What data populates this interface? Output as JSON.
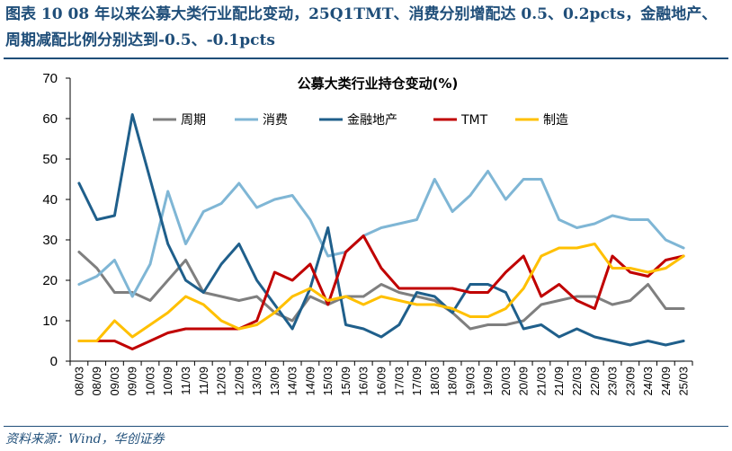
{
  "header": {
    "title": "图表 10 08 年以来公募大类行业配比变动，25Q1TMT、消费分别增配达 0.5、0.2pcts，金融地产、周期减配比例分别达到-0.5、-0.1pcts"
  },
  "footer": {
    "source": "资料来源：Wind，华创证券"
  },
  "chart_data": {
    "type": "line",
    "title": "公募大类行业持仓变动(%)",
    "xlabel": "",
    "ylabel": "",
    "ylim": [
      0,
      70
    ],
    "yticks": [
      0,
      10,
      20,
      30,
      40,
      50,
      60,
      70
    ],
    "x": [
      "08/03",
      "08/09",
      "09/03",
      "09/09",
      "10/03",
      "10/09",
      "11/03",
      "11/09",
      "12/03",
      "12/09",
      "13/03",
      "13/09",
      "14/03",
      "14/09",
      "15/03",
      "15/09",
      "16/03",
      "16/09",
      "17/03",
      "17/09",
      "18/03",
      "18/09",
      "19/03",
      "19/09",
      "20/03",
      "20/09",
      "21/03",
      "21/09",
      "22/03",
      "22/09",
      "23/03",
      "23/09",
      "24/03",
      "24/09",
      "25/03"
    ],
    "legend_position": "top-left",
    "grid": false,
    "series": [
      {
        "name": "周期",
        "color": "#7f7f7f",
        "values": [
          27,
          23,
          17,
          17,
          15,
          20,
          25,
          17,
          16,
          15,
          16,
          12,
          10,
          16,
          14,
          16,
          16,
          19,
          17,
          16,
          15,
          12,
          8,
          9,
          9,
          10,
          14,
          15,
          16,
          16,
          14,
          15,
          19,
          13,
          13
        ]
      },
      {
        "name": "消费",
        "color": "#7fb6d5",
        "values": [
          19,
          21,
          25,
          16,
          24,
          42,
          29,
          37,
          39,
          44,
          38,
          40,
          41,
          35,
          26,
          27,
          31,
          33,
          34,
          35,
          45,
          37,
          41,
          47,
          40,
          45,
          45,
          35,
          33,
          34,
          36,
          35,
          35,
          30,
          28
        ]
      },
      {
        "name": "金融地产",
        "color": "#1f5f8b",
        "values": [
          44,
          35,
          36,
          61,
          45,
          29,
          20,
          17,
          24,
          29,
          20,
          14,
          8,
          18,
          33,
          9,
          8,
          6,
          9,
          17,
          16,
          12,
          19,
          19,
          17,
          8,
          9,
          6,
          8,
          6,
          5,
          4,
          5,
          4,
          5
        ]
      },
      {
        "name": "TMT",
        "color": "#c00000",
        "values": [
          5,
          5,
          5,
          3,
          5,
          7,
          8,
          8,
          8,
          8,
          10,
          22,
          20,
          24,
          14,
          27,
          31,
          23,
          18,
          18,
          18,
          18,
          17,
          17,
          22,
          26,
          16,
          19,
          15,
          13,
          26,
          22,
          21,
          25,
          26
        ]
      },
      {
        "name": "制造",
        "color": "#ffc000",
        "values": [
          5,
          5,
          10,
          6,
          9,
          12,
          16,
          14,
          10,
          8,
          9,
          12,
          16,
          18,
          15,
          16,
          14,
          16,
          15,
          14,
          14,
          13,
          11,
          11,
          13,
          18,
          26,
          28,
          28,
          29,
          23,
          23,
          22,
          23,
          26
        ]
      }
    ]
  }
}
